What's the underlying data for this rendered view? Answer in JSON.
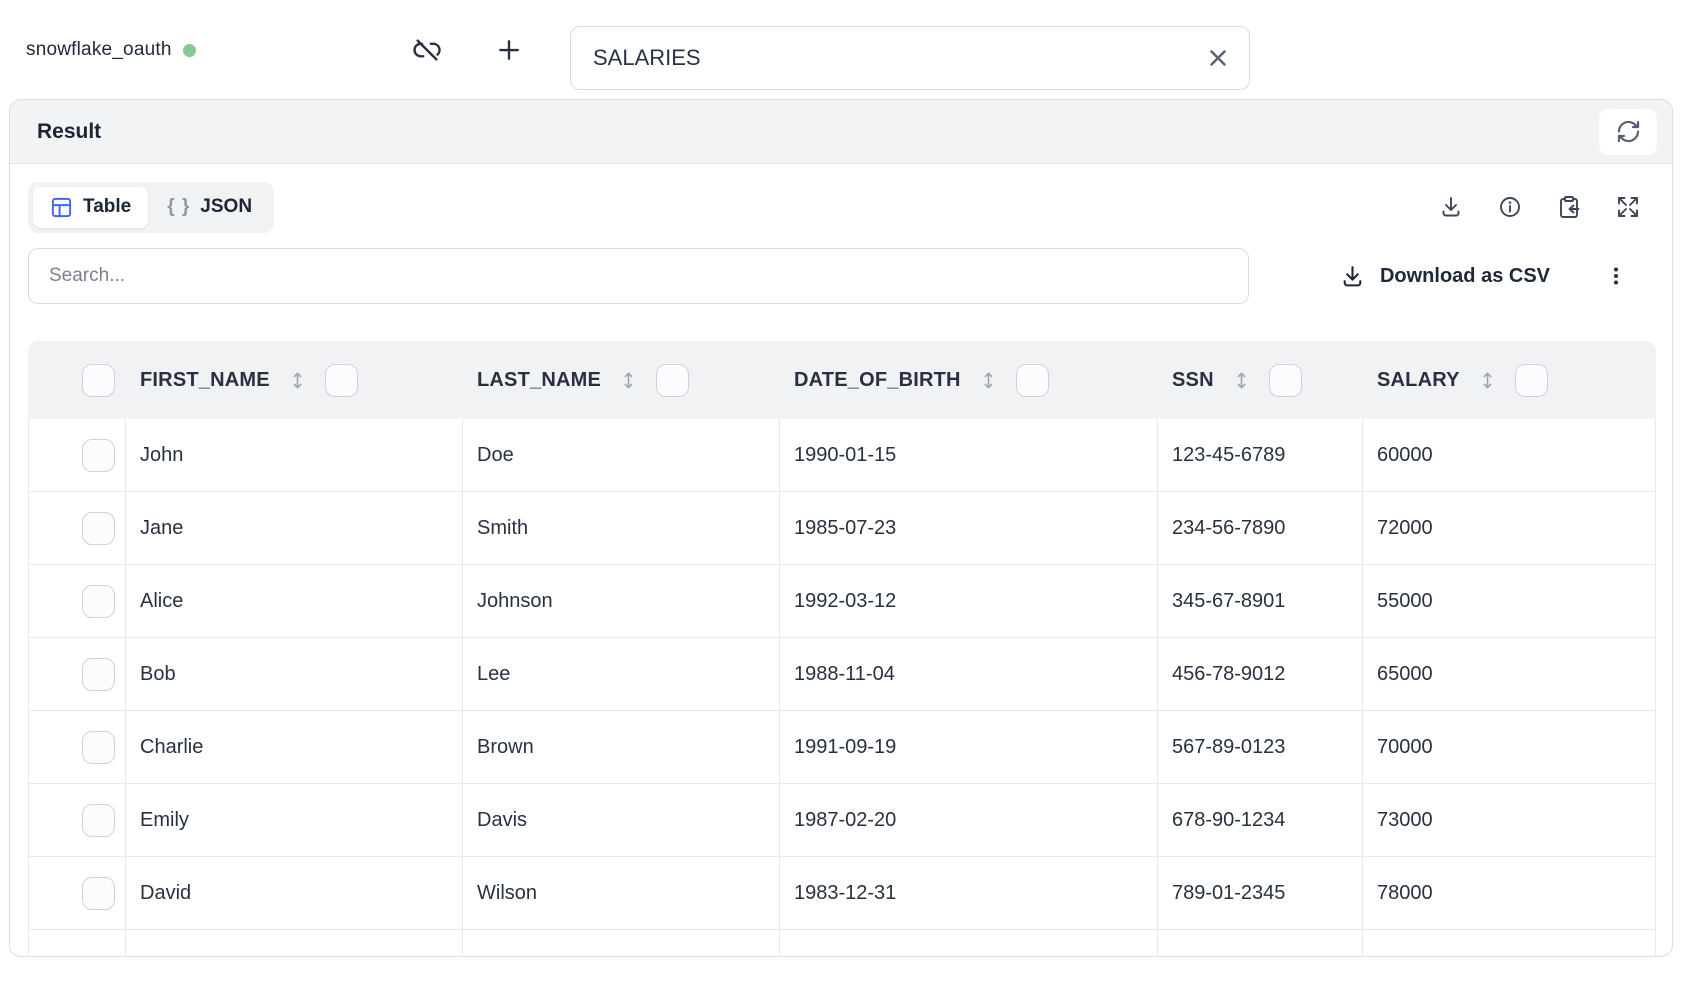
{
  "topbar": {
    "connection_name": "snowflake_oauth",
    "status": "connected",
    "query_value": "SALARIES"
  },
  "result": {
    "title": "Result",
    "tabs": [
      {
        "label": "Table",
        "active": true
      },
      {
        "label": "JSON",
        "active": false
      }
    ],
    "json_tab_glyph": "{ }",
    "search_placeholder": "Search...",
    "download_csv_label": "Download as CSV"
  },
  "table": {
    "columns": [
      "FIRST_NAME",
      "LAST_NAME",
      "DATE_OF_BIRTH",
      "SSN",
      "SALARY"
    ],
    "rows": [
      [
        "John",
        "Doe",
        "1990-01-15",
        "123-45-6789",
        "60000"
      ],
      [
        "Jane",
        "Smith",
        "1985-07-23",
        "234-56-7890",
        "72000"
      ],
      [
        "Alice",
        "Johnson",
        "1992-03-12",
        "345-67-8901",
        "55000"
      ],
      [
        "Bob",
        "Lee",
        "1988-11-04",
        "456-78-9012",
        "65000"
      ],
      [
        "Charlie",
        "Brown",
        "1991-09-19",
        "567-89-0123",
        "70000"
      ],
      [
        "Emily",
        "Davis",
        "1987-02-20",
        "678-90-1234",
        "73000"
      ],
      [
        "David",
        "Wilson",
        "1983-12-31",
        "789-01-2345",
        "78000"
      ]
    ]
  },
  "colors": {
    "accent_blue": "#4066f0",
    "status_green": "#87c897",
    "header_gray": "#f0f2f4",
    "text_dark": "#232e3e",
    "icon_gray": "#3d4656",
    "muted_gray": "#9aa3af"
  }
}
